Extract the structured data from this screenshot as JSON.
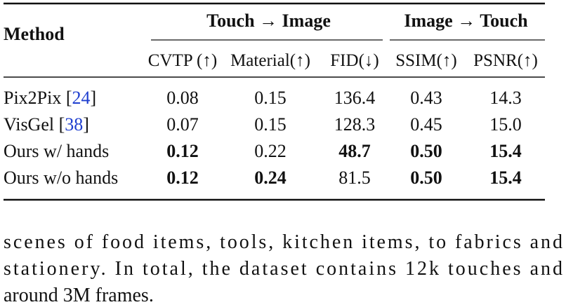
{
  "table": {
    "method_header": "Method",
    "groups": [
      {
        "label": "Touch → Image",
        "span": [
          0,
          2
        ]
      },
      {
        "label": "Image → Touch",
        "span": [
          3,
          4
        ]
      }
    ],
    "columns": [
      "CVTP (↑)",
      "Material(↑)",
      "FID(↓)",
      "SSIM(↑)",
      "PSNR(↑)"
    ],
    "cite_color": "#1f3fcf",
    "rows": [
      {
        "method": [
          "Pix2Pix [",
          "24",
          "]"
        ],
        "cells": [
          "0.08",
          "0.15",
          "136.4",
          "0.43",
          "14.3"
        ],
        "bold": [
          false,
          false,
          false,
          false,
          false
        ]
      },
      {
        "method": [
          "VisGel [",
          "38",
          "]"
        ],
        "cells": [
          "0.07",
          "0.15",
          "128.3",
          "0.45",
          "15.0"
        ],
        "bold": [
          false,
          false,
          false,
          false,
          false
        ]
      },
      {
        "method": [
          "Ours w/ hands"
        ],
        "cells": [
          "0.12",
          "0.22",
          "48.7",
          "0.50",
          "15.4"
        ],
        "bold": [
          true,
          false,
          true,
          true,
          true
        ]
      },
      {
        "method": [
          "Ours w/o hands"
        ],
        "cells": [
          "0.12",
          "0.24",
          "81.5",
          "0.50",
          "15.4"
        ],
        "bold": [
          true,
          true,
          false,
          true,
          true
        ]
      }
    ]
  },
  "paragraph": {
    "lines": [
      "scenes of food items, tools, kitchen items, to fabrics and",
      "stationery. In total, the dataset contains 12k touches and",
      "around 3M frames."
    ]
  }
}
